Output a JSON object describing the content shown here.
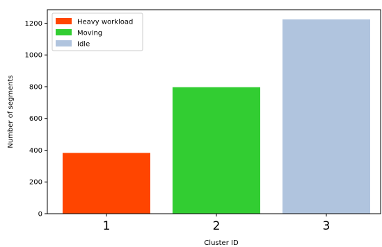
{
  "chart_data": {
    "type": "bar",
    "categories": [
      "1",
      "2",
      "3"
    ],
    "values": [
      383,
      797,
      1224
    ],
    "colors": [
      "#ff4500",
      "#32cd32",
      "#b0c4de"
    ],
    "xlabel": "Cluster ID",
    "ylabel": "Number of segments",
    "ylim": [
      0,
      1285
    ],
    "yticks": [
      0,
      200,
      400,
      600,
      800,
      1000,
      1200
    ],
    "grid": false,
    "legend": {
      "placement": "top-left",
      "entries": [
        {
          "label": "Heavy workload",
          "color": "#ff4500"
        },
        {
          "label": "Moving",
          "color": "#32cd32"
        },
        {
          "label": "Idle",
          "color": "#b0c4de"
        }
      ]
    }
  }
}
